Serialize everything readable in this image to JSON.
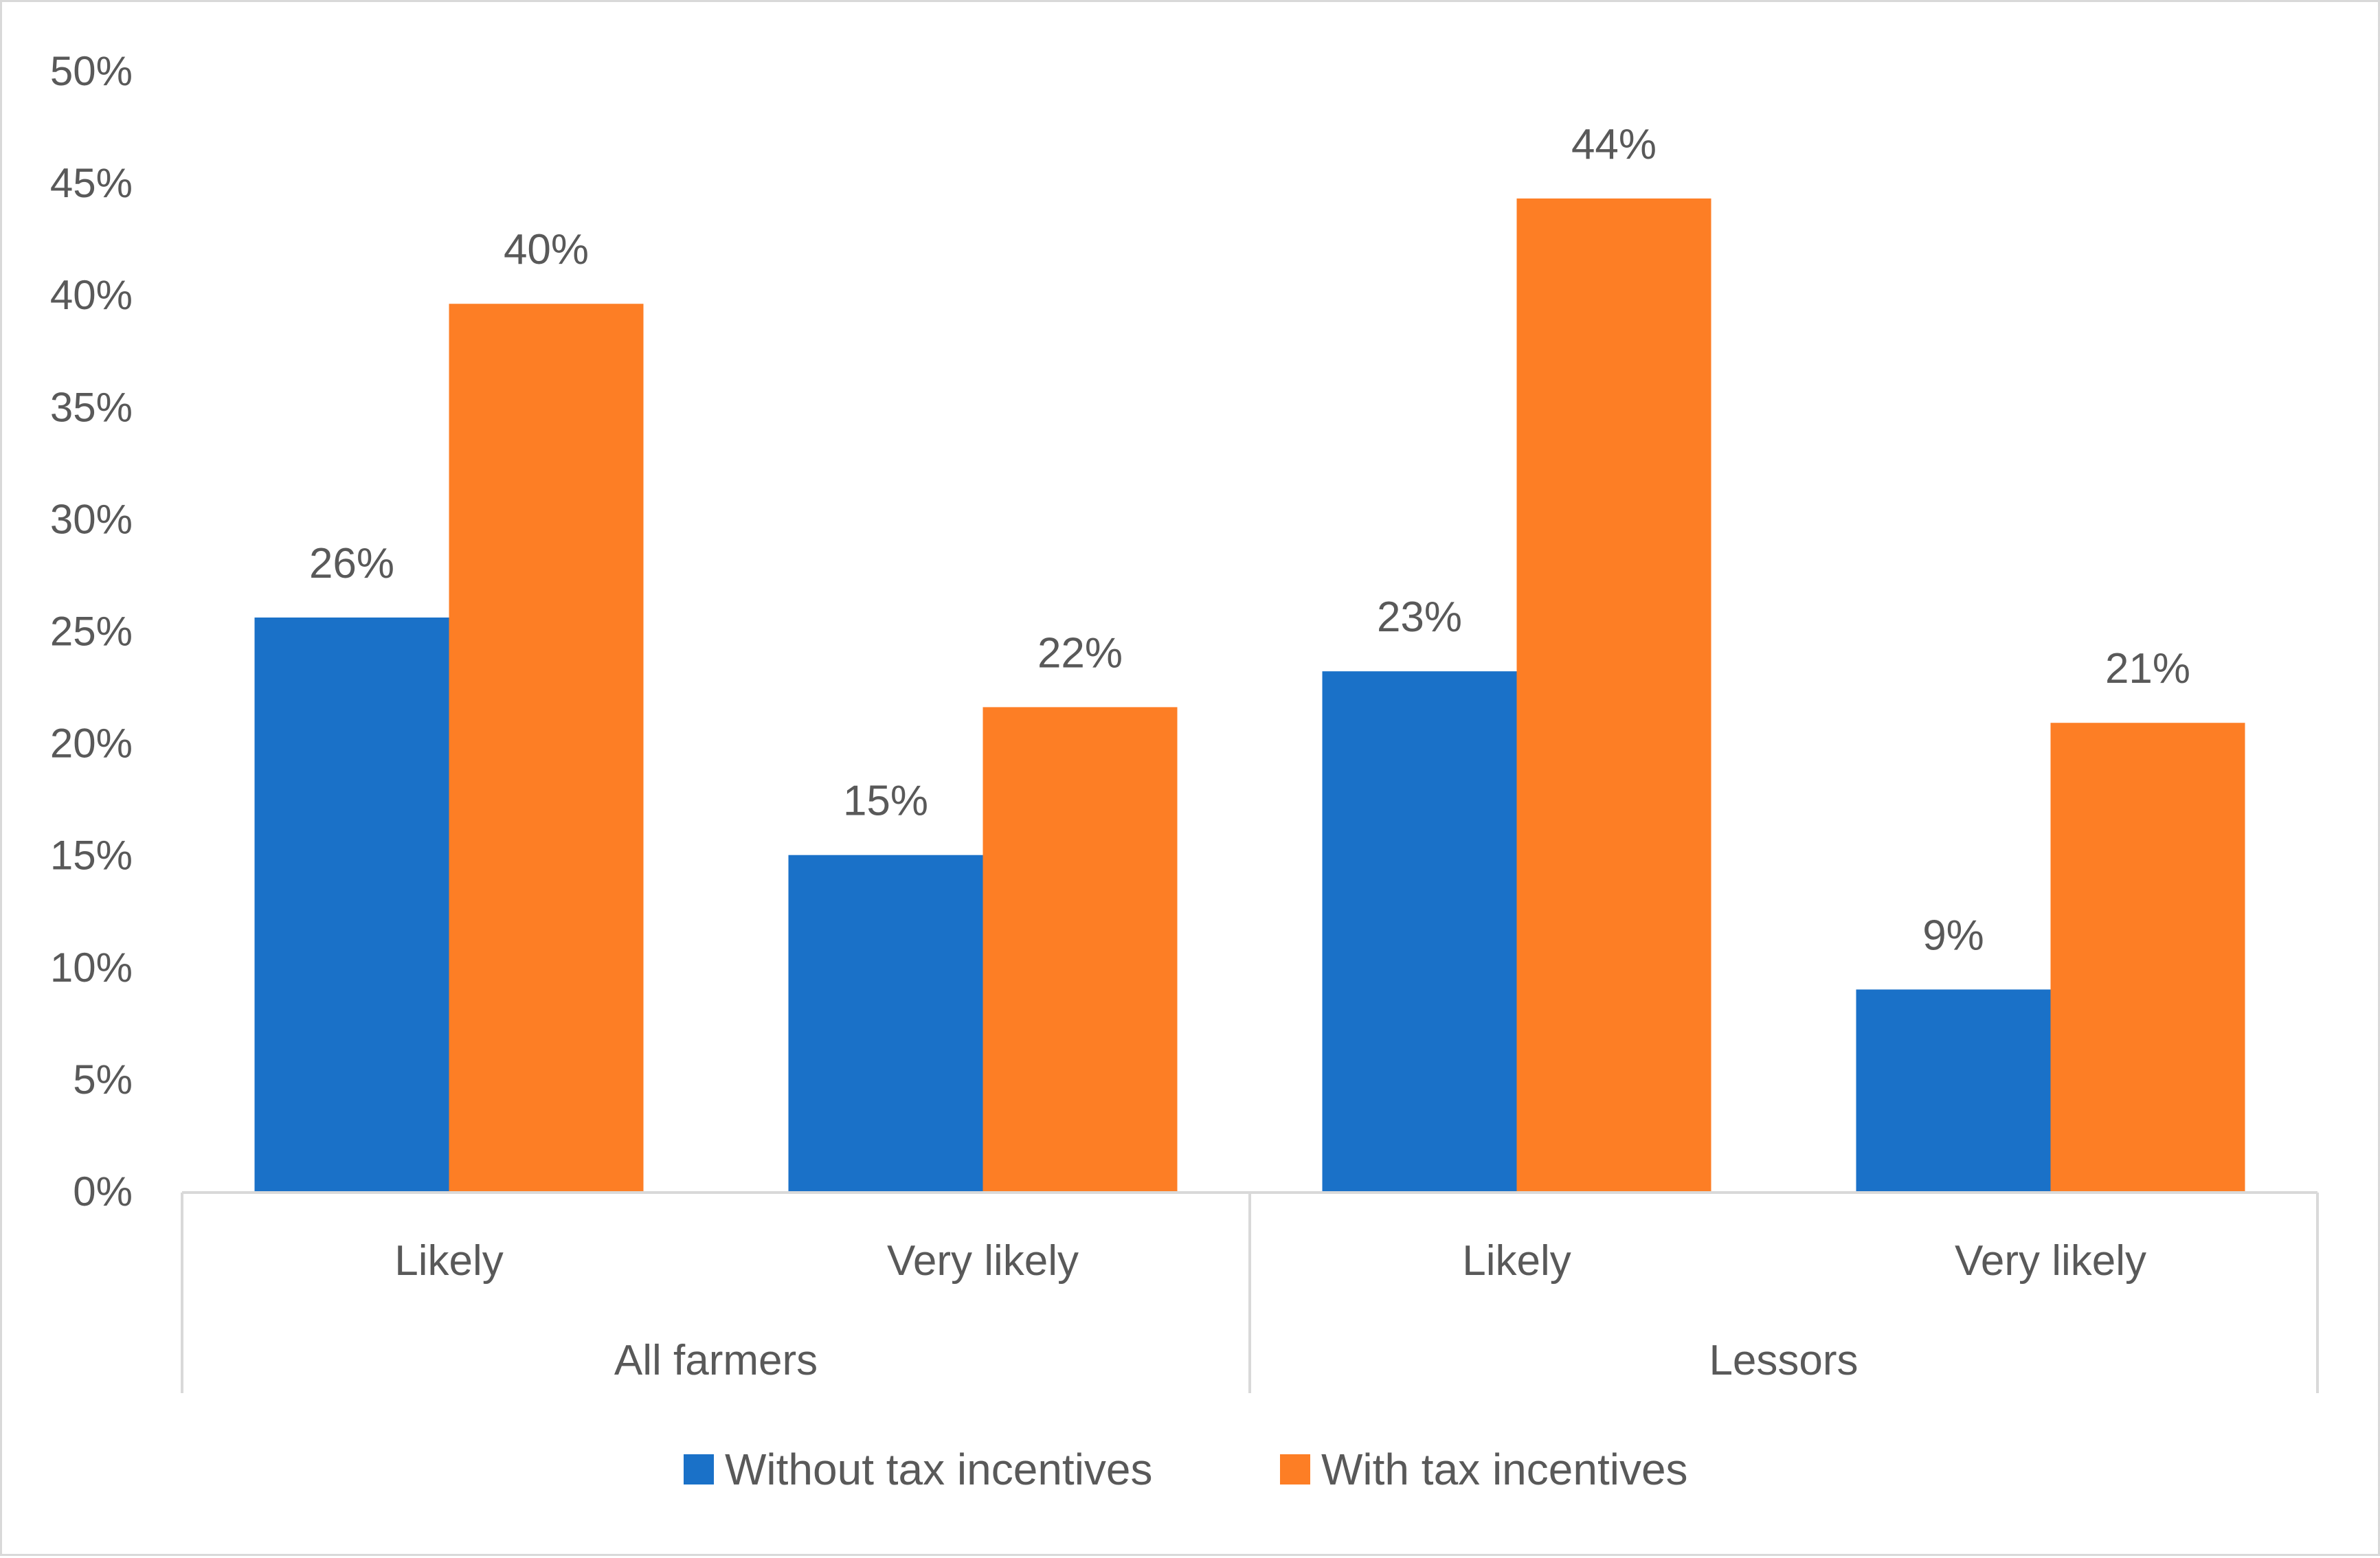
{
  "chart_data": {
    "type": "bar",
    "title": "",
    "xlabel": "",
    "ylabel": "",
    "ylim": [
      0,
      50
    ],
    "y_ticks": [
      0,
      5,
      10,
      15,
      20,
      25,
      30,
      35,
      40,
      45,
      50
    ],
    "y_tick_labels": [
      "0%",
      "5%",
      "10%",
      "15%",
      "20%",
      "25%",
      "30%",
      "35%",
      "40%",
      "45%",
      "50%"
    ],
    "grid": false,
    "legend_position": "bottom",
    "groups": [
      {
        "label": "All farmers",
        "categories": [
          "Likely",
          "Very likely"
        ]
      },
      {
        "label": "Lessors",
        "categories": [
          "Likely",
          "Very likely"
        ]
      }
    ],
    "categories": [
      "Likely",
      "Very likely",
      "Likely",
      "Very likely"
    ],
    "series": [
      {
        "name": "Without tax incentives",
        "color": "#1a71c8",
        "values": [
          25.6,
          15.0,
          23.2,
          9.0
        ],
        "labels": [
          "26%",
          "15%",
          "23%",
          "9%"
        ]
      },
      {
        "name": "With tax incentives",
        "color": "#fd7e25",
        "values": [
          39.6,
          21.6,
          44.3,
          20.9
        ],
        "labels": [
          "40%",
          "22%",
          "44%",
          "21%"
        ]
      }
    ]
  }
}
